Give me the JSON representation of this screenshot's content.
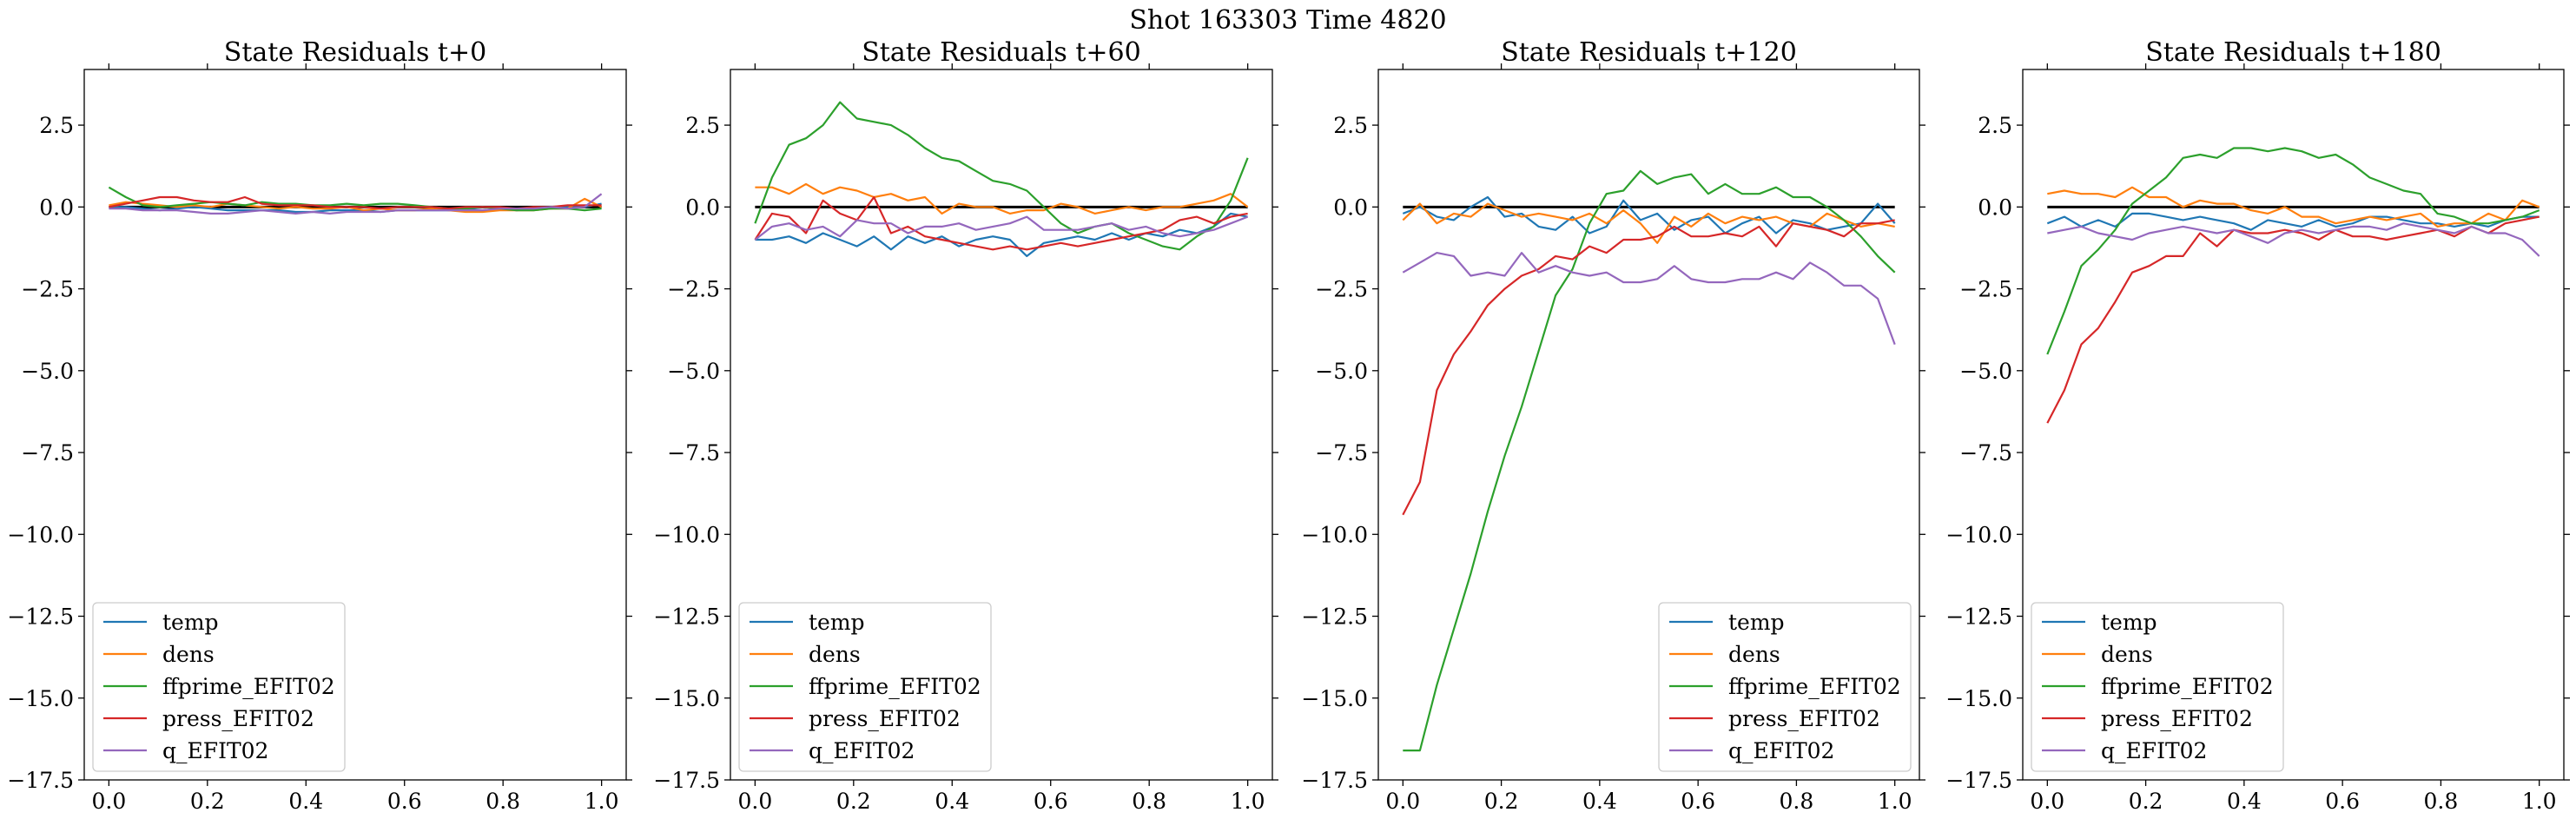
{
  "figure": {
    "suptitle": "Shot 163303   Time 4820"
  },
  "chart_data": [
    {
      "type": "line",
      "title": "State Residuals t+0",
      "xlabel": "",
      "ylabel": "",
      "xlim": [
        -0.05,
        1.05
      ],
      "ylim": [
        -17.5,
        4.2
      ],
      "xticks": [
        "0.0",
        "0.2",
        "0.4",
        "0.6",
        "0.8",
        "1.0"
      ],
      "yticks": [
        "2.5",
        "0.0",
        "−2.5",
        "−5.0",
        "−7.5",
        "−10.0",
        "−12.5",
        "−15.0",
        "−17.5"
      ],
      "reference_line": 0,
      "legend_position": "lower-left",
      "x": [
        0.0,
        0.0345,
        0.069,
        0.1034,
        0.1379,
        0.1724,
        0.2069,
        0.2414,
        0.2759,
        0.3103,
        0.3448,
        0.3793,
        0.4138,
        0.4483,
        0.4828,
        0.5172,
        0.5517,
        0.5862,
        0.6207,
        0.6552,
        0.6897,
        0.7241,
        0.7586,
        0.7931,
        0.8276,
        0.8621,
        0.8966,
        0.931,
        0.9655,
        1.0
      ],
      "series": [
        {
          "name": "temp",
          "color": "#1f77b4",
          "values": [
            0.0,
            0.0,
            -0.05,
            -0.1,
            -0.05,
            0.0,
            -0.05,
            -0.1,
            -0.1,
            -0.1,
            -0.1,
            -0.15,
            -0.15,
            -0.1,
            -0.1,
            -0.1,
            -0.15,
            -0.1,
            -0.1,
            -0.1,
            -0.1,
            -0.05,
            -0.1,
            -0.05,
            -0.1,
            -0.05,
            -0.05,
            0.0,
            0.0,
            0.1
          ]
        },
        {
          "name": "dens",
          "color": "#ff7f0e",
          "values": [
            0.05,
            0.15,
            0.1,
            0.05,
            0.0,
            0.05,
            0.0,
            0.1,
            0.05,
            0.0,
            -0.05,
            0.0,
            -0.05,
            -0.05,
            0.0,
            -0.1,
            -0.05,
            -0.1,
            -0.1,
            -0.05,
            -0.1,
            -0.15,
            -0.15,
            -0.1,
            -0.1,
            -0.1,
            -0.05,
            -0.05,
            0.25,
            0.0
          ]
        },
        {
          "name": "ffprime_EFIT02",
          "color": "#2ca02c",
          "values": [
            0.6,
            0.3,
            0.05,
            0.0,
            0.05,
            0.1,
            0.15,
            0.1,
            0.05,
            0.15,
            0.1,
            0.1,
            0.05,
            0.05,
            0.1,
            0.05,
            0.1,
            0.1,
            0.05,
            0.0,
            -0.05,
            -0.05,
            0.0,
            -0.05,
            -0.1,
            -0.1,
            -0.05,
            -0.05,
            -0.1,
            -0.05
          ]
        },
        {
          "name": "press_EFIT02",
          "color": "#d62728",
          "values": [
            0.0,
            0.1,
            0.2,
            0.3,
            0.3,
            0.2,
            0.15,
            0.15,
            0.3,
            0.1,
            0.05,
            0.05,
            0.05,
            0.0,
            0.0,
            0.0,
            -0.05,
            0.0,
            0.0,
            0.0,
            -0.05,
            0.0,
            0.0,
            0.0,
            -0.05,
            0.0,
            0.0,
            0.05,
            0.05,
            0.05
          ]
        },
        {
          "name": "q_EFIT02",
          "color": "#9467bd",
          "values": [
            -0.05,
            -0.05,
            -0.1,
            -0.1,
            -0.1,
            -0.15,
            -0.2,
            -0.2,
            -0.15,
            -0.1,
            -0.15,
            -0.2,
            -0.15,
            -0.2,
            -0.15,
            -0.15,
            -0.15,
            -0.1,
            -0.1,
            -0.1,
            -0.1,
            -0.1,
            -0.1,
            -0.05,
            -0.05,
            -0.05,
            0.0,
            -0.05,
            0.0,
            0.4
          ]
        }
      ]
    },
    {
      "type": "line",
      "title": "State Residuals t+60",
      "xlabel": "",
      "ylabel": "",
      "xlim": [
        -0.05,
        1.05
      ],
      "ylim": [
        -17.5,
        4.2
      ],
      "xticks": [
        "0.0",
        "0.2",
        "0.4",
        "0.6",
        "0.8",
        "1.0"
      ],
      "yticks": [
        "2.5",
        "0.0",
        "−2.5",
        "−5.0",
        "−7.5",
        "−10.0",
        "−12.5",
        "−15.0",
        "−17.5"
      ],
      "reference_line": 0,
      "legend_position": "lower-left",
      "x": [
        0.0,
        0.0345,
        0.069,
        0.1034,
        0.1379,
        0.1724,
        0.2069,
        0.2414,
        0.2759,
        0.3103,
        0.3448,
        0.3793,
        0.4138,
        0.4483,
        0.4828,
        0.5172,
        0.5517,
        0.5862,
        0.6207,
        0.6552,
        0.6897,
        0.7241,
        0.7586,
        0.7931,
        0.8276,
        0.8621,
        0.8966,
        0.931,
        0.9655,
        1.0
      ],
      "series": [
        {
          "name": "temp",
          "color": "#1f77b4",
          "values": [
            -1.0,
            -1.0,
            -0.9,
            -1.1,
            -0.8,
            -1.0,
            -1.2,
            -0.9,
            -1.3,
            -0.9,
            -1.1,
            -0.9,
            -1.2,
            -1.0,
            -0.9,
            -1.0,
            -1.5,
            -1.1,
            -1.0,
            -0.9,
            -1.0,
            -0.8,
            -1.0,
            -0.8,
            -0.9,
            -0.7,
            -0.8,
            -0.6,
            -0.2,
            -0.3
          ]
        },
        {
          "name": "dens",
          "color": "#ff7f0e",
          "values": [
            0.6,
            0.6,
            0.4,
            0.7,
            0.4,
            0.6,
            0.5,
            0.3,
            0.4,
            0.2,
            0.3,
            -0.2,
            0.1,
            0.0,
            0.0,
            -0.2,
            -0.1,
            -0.1,
            0.1,
            0.0,
            -0.2,
            -0.1,
            0.0,
            -0.1,
            0.0,
            0.0,
            0.1,
            0.2,
            0.4,
            0.0
          ]
        },
        {
          "name": "ffprime_EFIT02",
          "color": "#2ca02c",
          "values": [
            -0.5,
            0.9,
            1.9,
            2.1,
            2.5,
            3.2,
            2.7,
            2.6,
            2.5,
            2.2,
            1.8,
            1.5,
            1.4,
            1.1,
            0.8,
            0.7,
            0.5,
            0.0,
            -0.5,
            -0.8,
            -0.6,
            -0.5,
            -0.8,
            -1.0,
            -1.2,
            -1.3,
            -0.9,
            -0.6,
            0.2,
            1.5
          ]
        },
        {
          "name": "press_EFIT02",
          "color": "#d62728",
          "values": [
            -1.0,
            -0.2,
            -0.3,
            -0.8,
            0.2,
            -0.2,
            -0.4,
            0.3,
            -0.8,
            -0.6,
            -0.9,
            -1.0,
            -1.1,
            -1.2,
            -1.3,
            -1.2,
            -1.3,
            -1.2,
            -1.1,
            -1.2,
            -1.1,
            -1.0,
            -0.9,
            -0.8,
            -0.7,
            -0.4,
            -0.3,
            -0.5,
            -0.3,
            -0.2
          ]
        },
        {
          "name": "q_EFIT02",
          "color": "#9467bd",
          "values": [
            -1.0,
            -0.6,
            -0.5,
            -0.7,
            -0.6,
            -0.9,
            -0.4,
            -0.5,
            -0.5,
            -0.8,
            -0.6,
            -0.6,
            -0.5,
            -0.7,
            -0.6,
            -0.5,
            -0.3,
            -0.7,
            -0.7,
            -0.7,
            -0.6,
            -0.5,
            -0.7,
            -0.6,
            -0.8,
            -0.9,
            -0.8,
            -0.7,
            -0.5,
            -0.3
          ]
        }
      ]
    },
    {
      "type": "line",
      "title": "State Residuals t+120",
      "xlabel": "",
      "ylabel": "",
      "xlim": [
        -0.05,
        1.05
      ],
      "ylim": [
        -17.5,
        4.2
      ],
      "xticks": [
        "0.0",
        "0.2",
        "0.4",
        "0.6",
        "0.8",
        "1.0"
      ],
      "yticks": [
        "2.5",
        "0.0",
        "−2.5",
        "−5.0",
        "−7.5",
        "−10.0",
        "−12.5",
        "−15.0",
        "−17.5"
      ],
      "reference_line": 0,
      "legend_position": "lower-right",
      "x": [
        0.0,
        0.0345,
        0.069,
        0.1034,
        0.1379,
        0.1724,
        0.2069,
        0.2414,
        0.2759,
        0.3103,
        0.3448,
        0.3793,
        0.4138,
        0.4483,
        0.4828,
        0.5172,
        0.5517,
        0.5862,
        0.6207,
        0.6552,
        0.6897,
        0.7241,
        0.7586,
        0.7931,
        0.8276,
        0.8621,
        0.8966,
        0.931,
        0.9655,
        1.0
      ],
      "series": [
        {
          "name": "temp",
          "color": "#1f77b4",
          "values": [
            -0.2,
            0.0,
            -0.3,
            -0.4,
            0.0,
            0.3,
            -0.3,
            -0.2,
            -0.6,
            -0.7,
            -0.3,
            -0.8,
            -0.6,
            0.2,
            -0.4,
            -0.2,
            -0.7,
            -0.4,
            -0.3,
            -0.8,
            -0.5,
            -0.3,
            -0.8,
            -0.4,
            -0.5,
            -0.7,
            -0.6,
            -0.5,
            0.1,
            -0.5
          ]
        },
        {
          "name": "dens",
          "color": "#ff7f0e",
          "values": [
            -0.4,
            0.1,
            -0.5,
            -0.2,
            -0.3,
            0.1,
            -0.1,
            -0.3,
            -0.2,
            -0.3,
            -0.4,
            -0.2,
            -0.5,
            -0.1,
            -0.5,
            -1.1,
            -0.3,
            -0.6,
            -0.2,
            -0.5,
            -0.3,
            -0.4,
            -0.3,
            -0.5,
            -0.6,
            -0.2,
            -0.4,
            -0.6,
            -0.5,
            -0.6
          ]
        },
        {
          "name": "ffprime_EFIT02",
          "color": "#2ca02c",
          "values": [
            -16.6,
            -16.6,
            -14.6,
            -12.9,
            -11.2,
            -9.3,
            -7.6,
            -6.1,
            -4.4,
            -2.7,
            -1.9,
            -0.5,
            0.4,
            0.5,
            1.1,
            0.7,
            0.9,
            1.0,
            0.4,
            0.7,
            0.4,
            0.4,
            0.6,
            0.3,
            0.3,
            0.0,
            -0.4,
            -0.9,
            -1.5,
            -2.0
          ]
        },
        {
          "name": "press_EFIT02",
          "color": "#d62728",
          "values": [
            -9.4,
            -8.4,
            -5.6,
            -4.5,
            -3.8,
            -3.0,
            -2.5,
            -2.1,
            -1.9,
            -1.5,
            -1.6,
            -1.2,
            -1.4,
            -1.0,
            -1.0,
            -0.9,
            -0.6,
            -0.9,
            -0.9,
            -0.8,
            -0.9,
            -0.6,
            -1.2,
            -0.5,
            -0.6,
            -0.7,
            -0.9,
            -0.5,
            -0.5,
            -0.4
          ]
        },
        {
          "name": "q_EFIT02",
          "color": "#9467bd",
          "values": [
            -2.0,
            -1.7,
            -1.4,
            -1.5,
            -2.1,
            -2.0,
            -2.1,
            -1.4,
            -2.0,
            -1.8,
            -2.0,
            -2.1,
            -2.0,
            -2.3,
            -2.3,
            -2.2,
            -1.8,
            -2.2,
            -2.3,
            -2.3,
            -2.2,
            -2.2,
            -2.0,
            -2.2,
            -1.7,
            -2.0,
            -2.4,
            -2.4,
            -2.8,
            -4.2
          ]
        }
      ]
    },
    {
      "type": "line",
      "title": "State Residuals t+180",
      "xlabel": "",
      "ylabel": "",
      "xlim": [
        -0.05,
        1.05
      ],
      "ylim": [
        -17.5,
        4.2
      ],
      "xticks": [
        "0.0",
        "0.2",
        "0.4",
        "0.6",
        "0.8",
        "1.0"
      ],
      "yticks": [
        "2.5",
        "0.0",
        "−2.5",
        "−5.0",
        "−7.5",
        "−10.0",
        "−12.5",
        "−15.0",
        "−17.5"
      ],
      "reference_line": 0,
      "legend_position": "lower-left",
      "x": [
        0.0,
        0.0345,
        0.069,
        0.1034,
        0.1379,
        0.1724,
        0.2069,
        0.2414,
        0.2759,
        0.3103,
        0.3448,
        0.3793,
        0.4138,
        0.4483,
        0.4828,
        0.5172,
        0.5517,
        0.5862,
        0.6207,
        0.6552,
        0.6897,
        0.7241,
        0.7586,
        0.7931,
        0.8276,
        0.8621,
        0.8966,
        0.931,
        0.9655,
        1.0
      ],
      "series": [
        {
          "name": "temp",
          "color": "#1f77b4",
          "values": [
            -0.5,
            -0.3,
            -0.6,
            -0.4,
            -0.6,
            -0.2,
            -0.2,
            -0.3,
            -0.4,
            -0.3,
            -0.4,
            -0.5,
            -0.7,
            -0.4,
            -0.5,
            -0.6,
            -0.4,
            -0.6,
            -0.5,
            -0.3,
            -0.3,
            -0.4,
            -0.5,
            -0.5,
            -0.6,
            -0.5,
            -0.6,
            -0.4,
            -0.3,
            -0.3
          ]
        },
        {
          "name": "dens",
          "color": "#ff7f0e",
          "values": [
            0.4,
            0.5,
            0.4,
            0.4,
            0.3,
            0.6,
            0.3,
            0.3,
            0.0,
            0.2,
            0.1,
            0.1,
            -0.1,
            -0.2,
            0.0,
            -0.3,
            -0.3,
            -0.5,
            -0.4,
            -0.3,
            -0.4,
            -0.3,
            -0.2,
            -0.6,
            -0.5,
            -0.5,
            -0.2,
            -0.4,
            0.2,
            0.0
          ]
        },
        {
          "name": "ffprime_EFIT02",
          "color": "#2ca02c",
          "values": [
            -4.5,
            -3.2,
            -1.8,
            -1.3,
            -0.7,
            0.1,
            0.5,
            0.9,
            1.5,
            1.6,
            1.5,
            1.8,
            1.8,
            1.7,
            1.8,
            1.7,
            1.5,
            1.6,
            1.3,
            0.9,
            0.7,
            0.5,
            0.4,
            -0.2,
            -0.3,
            -0.5,
            -0.5,
            -0.4,
            -0.3,
            -0.1
          ]
        },
        {
          "name": "press_EFIT02",
          "color": "#d62728",
          "values": [
            -6.6,
            -5.6,
            -4.2,
            -3.7,
            -2.9,
            -2.0,
            -1.8,
            -1.5,
            -1.5,
            -0.8,
            -1.2,
            -0.7,
            -0.8,
            -0.8,
            -0.7,
            -0.8,
            -1.0,
            -0.7,
            -0.9,
            -0.9,
            -1.0,
            -0.9,
            -0.8,
            -0.7,
            -0.9,
            -0.6,
            -0.8,
            -0.5,
            -0.4,
            -0.3
          ]
        },
        {
          "name": "q_EFIT02",
          "color": "#9467bd",
          "values": [
            -0.8,
            -0.7,
            -0.6,
            -0.8,
            -0.9,
            -1.0,
            -0.8,
            -0.7,
            -0.6,
            -0.7,
            -0.8,
            -0.7,
            -0.9,
            -1.1,
            -0.8,
            -0.7,
            -0.8,
            -0.7,
            -0.6,
            -0.6,
            -0.7,
            -0.5,
            -0.6,
            -0.7,
            -0.8,
            -0.6,
            -0.8,
            -0.8,
            -1.0,
            -1.5
          ]
        }
      ]
    }
  ]
}
